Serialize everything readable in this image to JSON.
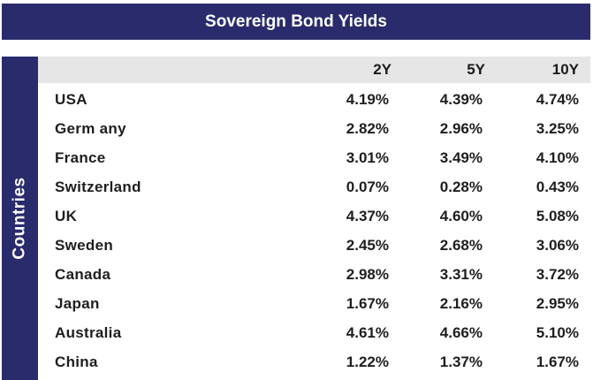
{
  "title": "Sovereign Bond Yields",
  "side_label": "Countries",
  "chart_data": {
    "type": "table",
    "title": "Sovereign Bond Yields",
    "row_header": "Countries",
    "columns": [
      "2Y",
      "5Y",
      "10Y"
    ],
    "rows": [
      {
        "country": "USA",
        "values": [
          "4.19%",
          "4.39%",
          "4.74%"
        ]
      },
      {
        "country": "Germ any",
        "values": [
          "2.82%",
          "2.96%",
          "3.25%"
        ]
      },
      {
        "country": "France",
        "values": [
          "3.01%",
          "3.49%",
          "4.10%"
        ]
      },
      {
        "country": "Switzerland",
        "values": [
          "0.07%",
          "0.28%",
          "0.43%"
        ]
      },
      {
        "country": "UK",
        "values": [
          "4.37%",
          "4.60%",
          "5.08%"
        ]
      },
      {
        "country": "Sweden",
        "values": [
          "2.45%",
          "2.68%",
          "3.06%"
        ]
      },
      {
        "country": "Canada",
        "values": [
          "2.98%",
          "3.31%",
          "3.72%"
        ]
      },
      {
        "country": "Japan",
        "values": [
          "1.67%",
          "2.16%",
          "2.95%"
        ]
      },
      {
        "country": "Australia",
        "values": [
          "4.61%",
          "4.66%",
          "5.10%"
        ]
      },
      {
        "country": "China",
        "values": [
          "1.22%",
          "1.37%",
          "1.67%"
        ]
      }
    ]
  },
  "colors": {
    "header_navy": "#2a2b6c",
    "header_band_gray": "#e6e6e6",
    "text": "#1e1e1e"
  }
}
